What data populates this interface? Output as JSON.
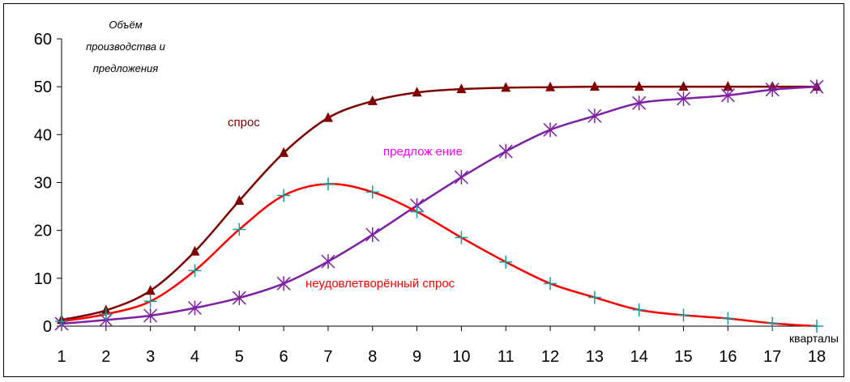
{
  "chart_data": {
    "type": "line",
    "ylabel_lines": [
      "Объём",
      "производства и",
      "предложения"
    ],
    "xlabel": "кварталы",
    "x": [
      1,
      2,
      3,
      4,
      5,
      6,
      7,
      8,
      9,
      10,
      11,
      12,
      13,
      14,
      15,
      16,
      17,
      18
    ],
    "ylim": [
      0,
      60
    ],
    "yticks": [
      0,
      10,
      20,
      30,
      40,
      50,
      60
    ],
    "grid": false,
    "series": [
      {
        "name": "спрос",
        "color": "#800000",
        "marker": "triangle",
        "values": [
          1.3,
          3.3,
          7.4,
          15.6,
          26.2,
          36.2,
          43.5,
          47,
          48.8,
          49.5,
          49.8,
          49.9,
          50,
          50,
          50,
          50,
          50,
          50
        ]
      },
      {
        "name": "предложение",
        "color": "#7e1fa6",
        "marker": "star",
        "values": [
          0.5,
          1.3,
          2.2,
          3.8,
          5.9,
          8.9,
          13.5,
          19.1,
          25.2,
          31.1,
          36.5,
          41,
          43.9,
          46.6,
          47.5,
          48.2,
          49.4,
          50
        ]
      },
      {
        "name": "неудовлетворённый спрос",
        "color": "#ff0000",
        "marker": "plus",
        "values": [
          1,
          2.5,
          5.2,
          11.6,
          20.2,
          27.3,
          29.7,
          28,
          23.9,
          18.5,
          13.4,
          8.9,
          6,
          3.4,
          2.3,
          1.6,
          0.6,
          0
        ]
      }
    ],
    "annotations": [
      {
        "series": "спрос",
        "text": "спрос",
        "color": "#800000"
      },
      {
        "series": "предложение",
        "text": "предлож ение",
        "color": "#ff00ff"
      },
      {
        "series": "неудовлетворённый спрос",
        "text": "неудовлетворённый спрос",
        "color": "#ff0000"
      }
    ]
  }
}
